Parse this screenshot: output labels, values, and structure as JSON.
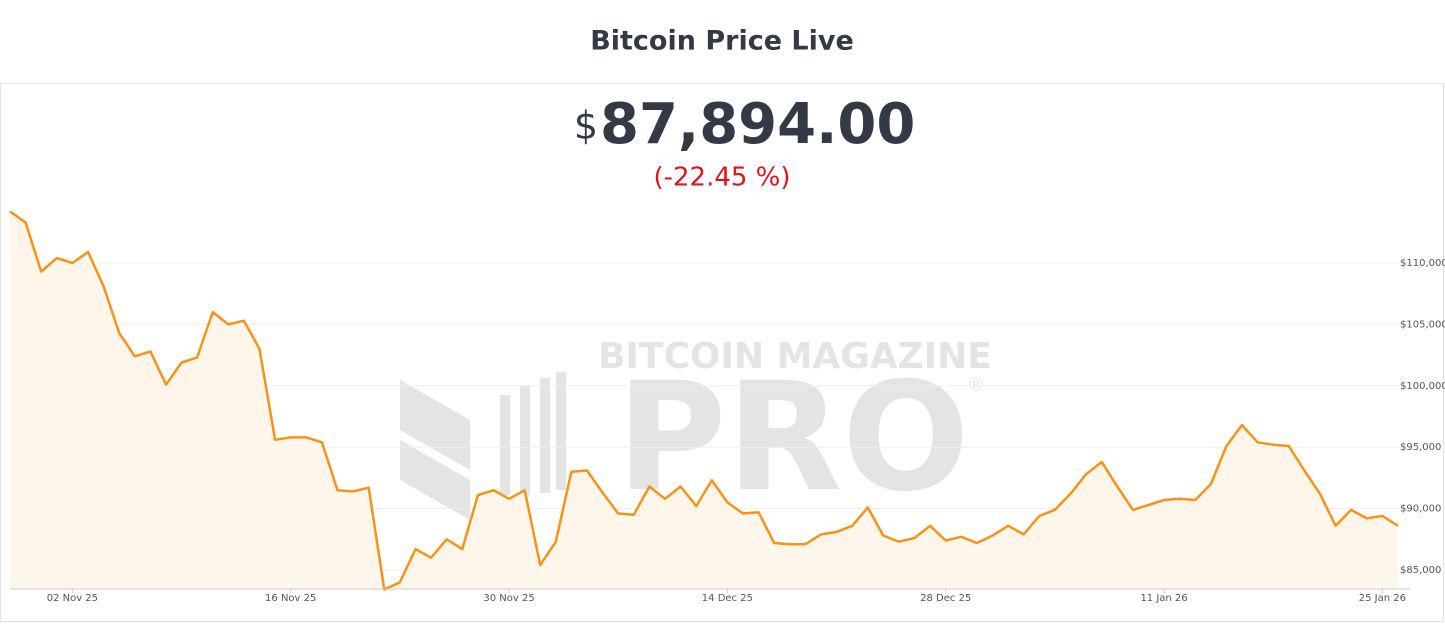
{
  "chart_data": {
    "type": "line",
    "title": "Bitcoin Price Live",
    "price_currency": "$",
    "price": "87,894.00",
    "change": "(-22.45 %)",
    "watermark": {
      "top": "BITCOIN MAGAZINE",
      "main": "PRO",
      "mark": "®"
    },
    "color": "#f7931a",
    "area_color": "#fef6ea",
    "grid": true,
    "x": [
      "2025-10-29",
      "2025-10-30",
      "2025-10-31",
      "2025-11-01",
      "2025-11-02",
      "2025-11-03",
      "2025-11-04",
      "2025-11-05",
      "2025-11-06",
      "2025-11-07",
      "2025-11-08",
      "2025-11-09",
      "2025-11-10",
      "2025-11-11",
      "2025-11-12",
      "2025-11-13",
      "2025-11-14",
      "2025-11-15",
      "2025-11-16",
      "2025-11-17",
      "2025-11-18",
      "2025-11-19",
      "2025-11-20",
      "2025-11-21",
      "2025-11-22",
      "2025-11-23",
      "2025-11-24",
      "2025-11-25",
      "2025-11-26",
      "2025-11-27",
      "2025-11-28",
      "2025-11-29",
      "2025-11-30",
      "2025-12-01",
      "2025-12-02",
      "2025-12-03",
      "2025-12-04",
      "2025-12-05",
      "2025-12-06",
      "2025-12-07",
      "2025-12-08",
      "2025-12-09",
      "2025-12-10",
      "2025-12-11",
      "2025-12-12",
      "2025-12-13",
      "2025-12-14",
      "2025-12-15",
      "2025-12-16",
      "2025-12-17",
      "2025-12-18",
      "2025-12-19",
      "2025-12-20",
      "2025-12-21",
      "2025-12-22",
      "2025-12-23",
      "2025-12-24",
      "2025-12-25",
      "2025-12-26",
      "2025-12-27",
      "2025-12-28",
      "2025-12-29",
      "2025-12-30",
      "2025-12-31",
      "2026-01-01",
      "2026-01-02",
      "2026-01-03",
      "2026-01-04",
      "2026-01-05",
      "2026-01-06",
      "2026-01-07",
      "2026-01-08",
      "2026-01-09",
      "2026-01-10",
      "2026-01-11",
      "2026-01-12",
      "2026-01-13",
      "2026-01-14",
      "2026-01-15",
      "2026-01-16",
      "2026-01-17",
      "2026-01-18",
      "2026-01-19",
      "2026-01-20",
      "2026-01-21",
      "2026-01-22",
      "2026-01-23",
      "2026-01-24",
      "2026-01-25",
      "2026-01-26"
    ],
    "values": [
      114200,
      113300,
      109300,
      110400,
      110000,
      110900,
      108100,
      104300,
      102400,
      102800,
      100100,
      101900,
      102300,
      106000,
      105000,
      105300,
      103000,
      95600,
      95800,
      95800,
      95400,
      91500,
      91400,
      91700,
      83400,
      84000,
      86700,
      86000,
      87500,
      86700,
      91100,
      91500,
      90800,
      91500,
      85400,
      87300,
      93000,
      93100,
      91300,
      89600,
      89500,
      91800,
      90800,
      91800,
      90200,
      92300,
      90500,
      89600,
      89700,
      87200,
      87100,
      87100,
      87900,
      88100,
      88600,
      90100,
      87800,
      87300,
      87600,
      88600,
      87400,
      87700,
      87200,
      87800,
      88600,
      87900,
      89400,
      89900,
      91200,
      92800,
      93800,
      91800,
      89900,
      90300,
      90700,
      90800,
      90700,
      92000,
      95100,
      96800,
      95400,
      95200,
      95100,
      93100,
      91200,
      88600,
      89900,
      89200,
      89400,
      88600
    ],
    "xlim": [
      "2025-10-29",
      "2026-01-26"
    ],
    "xticks": [
      {
        "value": "2025-11-02",
        "label": "02 Nov 25"
      },
      {
        "value": "2025-11-16",
        "label": "16 Nov 25"
      },
      {
        "value": "2025-11-30",
        "label": "30 Nov 25"
      },
      {
        "value": "2025-12-14",
        "label": "14 Dec 25"
      },
      {
        "value": "2025-12-28",
        "label": "28 Dec 25"
      },
      {
        "value": "2026-01-11",
        "label": "11 Jan 26"
      },
      {
        "value": "2026-01-25",
        "label": "25 Jan 26"
      }
    ],
    "ylim": [
      83450,
      124500
    ],
    "yticks": [
      {
        "value": 85000,
        "label": "$85,000"
      },
      {
        "value": 90000,
        "label": "$90,000"
      },
      {
        "value": 95000,
        "label": "$95,000"
      },
      {
        "value": 100000,
        "label": "$100,000"
      },
      {
        "value": 105000,
        "label": "$105,000"
      },
      {
        "value": 110000,
        "label": "$110,000"
      }
    ]
  }
}
